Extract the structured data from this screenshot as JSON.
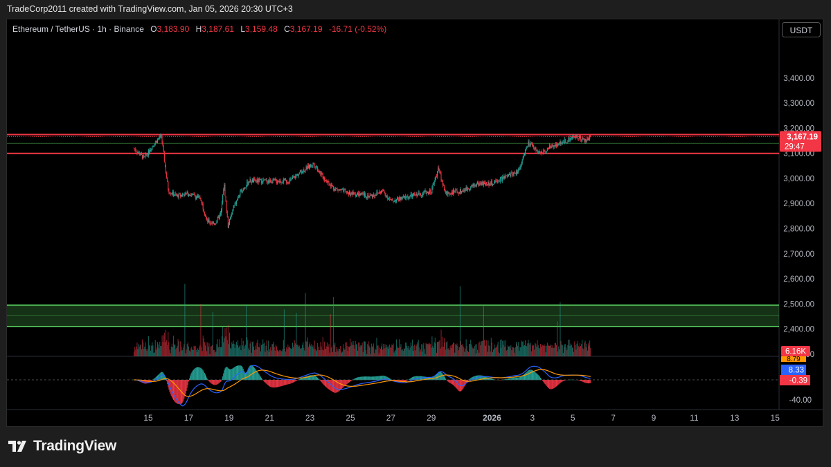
{
  "header": {
    "text": "TradeCorp2011 created with TradingView.com, Jan 05, 2026 20:30 UTC+3"
  },
  "legend": {
    "symbol": "Ethereum / TetherUS · 1h · Binance",
    "open_label": "O",
    "open": "3,183.90",
    "high_label": "H",
    "high": "3,187.61",
    "low_label": "L",
    "low": "3,159.48",
    "close_label": "C",
    "close": "3,167.19",
    "change": "-16.71 (-0.52%)"
  },
  "currency_button": "USDT",
  "footer": {
    "brand": "TradingView",
    "logo_icon": "tradingview-logo-icon"
  },
  "colors": {
    "up": "#26a69a",
    "down": "#f23645",
    "resistance": "#f23645",
    "support": "#4caf50",
    "macd": "#2962ff",
    "signal": "#ff9800"
  },
  "chart_data": {
    "type": "candlestick",
    "symbol": "ETH/USDT",
    "interval": "1h",
    "ylim": [
      2250,
      3460
    ],
    "y_ticks": [
      2300,
      2400,
      2500,
      2600,
      2700,
      2800,
      2900,
      3000,
      3100,
      3200,
      3300,
      3400
    ],
    "y_tick_labels": [
      "2,300.00",
      "2,400.00",
      "2,500.00",
      "2,600.00",
      "2,700.00",
      "2,800.00",
      "2,900.00",
      "3,000.00",
      "3,100.00",
      "3,200.00",
      "3,300.00",
      "3,400.00"
    ],
    "x_ticks": [
      {
        "label": "15",
        "day": 0
      },
      {
        "label": "17",
        "day": 2
      },
      {
        "label": "19",
        "day": 4
      },
      {
        "label": "21",
        "day": 6
      },
      {
        "label": "23",
        "day": 8
      },
      {
        "label": "25",
        "day": 10
      },
      {
        "label": "27",
        "day": 12
      },
      {
        "label": "29",
        "day": 14
      },
      {
        "label": "2026",
        "day": 17
      },
      {
        "label": "3",
        "day": 19
      },
      {
        "label": "5",
        "day": 21
      },
      {
        "label": "7",
        "day": 23
      },
      {
        "label": "9",
        "day": 25
      },
      {
        "label": "11",
        "day": 27
      },
      {
        "label": "13",
        "day": 29
      },
      {
        "label": "15",
        "day": 31
      }
    ],
    "price_path": [
      {
        "day": -0.7,
        "p": 3120
      },
      {
        "day": -0.2,
        "p": 3080
      },
      {
        "day": 0.3,
        "p": 3140
      },
      {
        "day": 0.65,
        "p": 3170
      },
      {
        "day": 0.85,
        "p": 3040
      },
      {
        "day": 1.0,
        "p": 2950
      },
      {
        "day": 1.4,
        "p": 2930
      },
      {
        "day": 2.0,
        "p": 2940
      },
      {
        "day": 2.6,
        "p": 2920
      },
      {
        "day": 2.9,
        "p": 2830
      },
      {
        "day": 3.3,
        "p": 2820
      },
      {
        "day": 3.6,
        "p": 2860
      },
      {
        "day": 3.75,
        "p": 2980
      },
      {
        "day": 3.95,
        "p": 2810
      },
      {
        "day": 4.2,
        "p": 2880
      },
      {
        "day": 4.6,
        "p": 2950
      },
      {
        "day": 5.0,
        "p": 2990
      },
      {
        "day": 6.0,
        "p": 2990
      },
      {
        "day": 7.0,
        "p": 2990
      },
      {
        "day": 7.6,
        "p": 3030
      },
      {
        "day": 8.2,
        "p": 3060
      },
      {
        "day": 8.6,
        "p": 3010
      },
      {
        "day": 9.2,
        "p": 2960
      },
      {
        "day": 10.0,
        "p": 2940
      },
      {
        "day": 11.0,
        "p": 2930
      },
      {
        "day": 11.6,
        "p": 2950
      },
      {
        "day": 12.0,
        "p": 2910
      },
      {
        "day": 13.0,
        "p": 2930
      },
      {
        "day": 14.0,
        "p": 2950
      },
      {
        "day": 14.35,
        "p": 3040
      },
      {
        "day": 14.7,
        "p": 2940
      },
      {
        "day": 15.5,
        "p": 2950
      },
      {
        "day": 16.3,
        "p": 2980
      },
      {
        "day": 17.0,
        "p": 2980
      },
      {
        "day": 17.8,
        "p": 3010
      },
      {
        "day": 18.3,
        "p": 3030
      },
      {
        "day": 18.8,
        "p": 3140
      },
      {
        "day": 19.4,
        "p": 3100
      },
      {
        "day": 20.0,
        "p": 3130
      },
      {
        "day": 20.6,
        "p": 3150
      },
      {
        "day": 21.2,
        "p": 3170
      },
      {
        "day": 21.6,
        "p": 3150
      },
      {
        "day": 21.9,
        "p": 3167
      }
    ],
    "last_price": 3167.19,
    "last_price_label": "3,167.19",
    "countdown": "29:47",
    "resistance_zone": [
      3100,
      3175
    ],
    "support_zone": [
      2410,
      2495
    ],
    "volume_label": "6.16K",
    "macd": {
      "labels": [
        "8.79",
        "8.33",
        "-0.39"
      ],
      "y_tick_labels": [
        "-40.00"
      ],
      "ylim": [
        -60,
        75
      ]
    }
  }
}
